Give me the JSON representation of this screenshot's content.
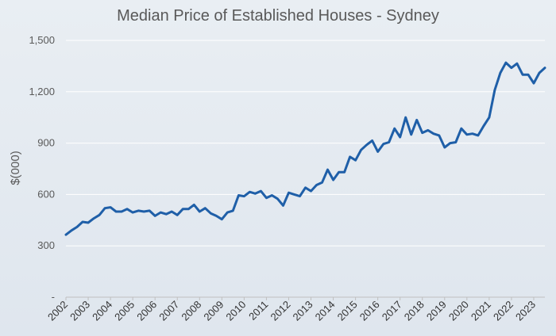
{
  "chart_data": {
    "type": "line",
    "title": "Median Price of Established Houses - Sydney",
    "xlabel": "",
    "ylabel": "$(000)",
    "ylim": [
      0,
      1500
    ],
    "yticks": [
      0,
      300,
      600,
      900,
      1200,
      1500
    ],
    "ytick_labels": [
      "-",
      "300",
      "600",
      "900",
      "1,200",
      "1,500"
    ],
    "xticks": [
      "2002",
      "2003",
      "2004",
      "2005",
      "2006",
      "2007",
      "2008",
      "2009",
      "2010",
      "2011",
      "2012",
      "2013",
      "2014",
      "2015",
      "2016",
      "2017",
      "2018",
      "2019",
      "2020",
      "2021",
      "2022",
      "2023"
    ],
    "grid": true,
    "legend": "none",
    "series": [
      {
        "color": "#1f5fa8",
        "x": [
          2002.0,
          2002.25,
          2002.5,
          2002.75,
          2003.0,
          2003.25,
          2003.5,
          2003.75,
          2004.0,
          2004.25,
          2004.5,
          2004.75,
          2005.0,
          2005.25,
          2005.5,
          2005.75,
          2006.0,
          2006.25,
          2006.5,
          2006.75,
          2007.0,
          2007.25,
          2007.5,
          2007.75,
          2008.0,
          2008.25,
          2008.5,
          2008.75,
          2009.0,
          2009.25,
          2009.5,
          2009.75,
          2010.0,
          2010.25,
          2010.5,
          2010.75,
          2011.0,
          2011.25,
          2011.5,
          2011.75,
          2012.0,
          2012.25,
          2012.5,
          2012.75,
          2013.0,
          2013.25,
          2013.5,
          2013.75,
          2014.0,
          2014.25,
          2014.5,
          2014.75,
          2015.0,
          2015.25,
          2015.5,
          2015.75,
          2016.0,
          2016.25,
          2016.5,
          2016.75,
          2017.0,
          2017.25,
          2017.5,
          2017.75,
          2018.0,
          2018.25,
          2018.5,
          2018.75,
          2019.0,
          2019.25,
          2019.5,
          2019.75,
          2020.0,
          2020.25,
          2020.5,
          2020.75,
          2021.0,
          2021.25,
          2021.5,
          2021.75,
          2022.0,
          2022.25,
          2022.5,
          2022.75,
          2023.0,
          2023.25,
          2023.5
        ],
        "values": [
          365,
          390,
          410,
          440,
          435,
          460,
          480,
          520,
          525,
          500,
          500,
          515,
          495,
          505,
          500,
          505,
          475,
          495,
          485,
          500,
          480,
          515,
          515,
          540,
          500,
          520,
          490,
          475,
          455,
          495,
          505,
          595,
          590,
          615,
          605,
          620,
          580,
          595,
          575,
          535,
          610,
          600,
          590,
          640,
          620,
          655,
          670,
          745,
          685,
          730,
          730,
          820,
          800,
          860,
          890,
          915,
          850,
          895,
          905,
          985,
          935,
          1050,
          950,
          1035,
          960,
          975,
          955,
          945,
          875,
          900,
          905,
          985,
          950,
          955,
          945,
          1000,
          1050,
          1210,
          1310,
          1370,
          1340,
          1365,
          1300,
          1300,
          1250,
          1310,
          1340
        ]
      }
    ]
  }
}
